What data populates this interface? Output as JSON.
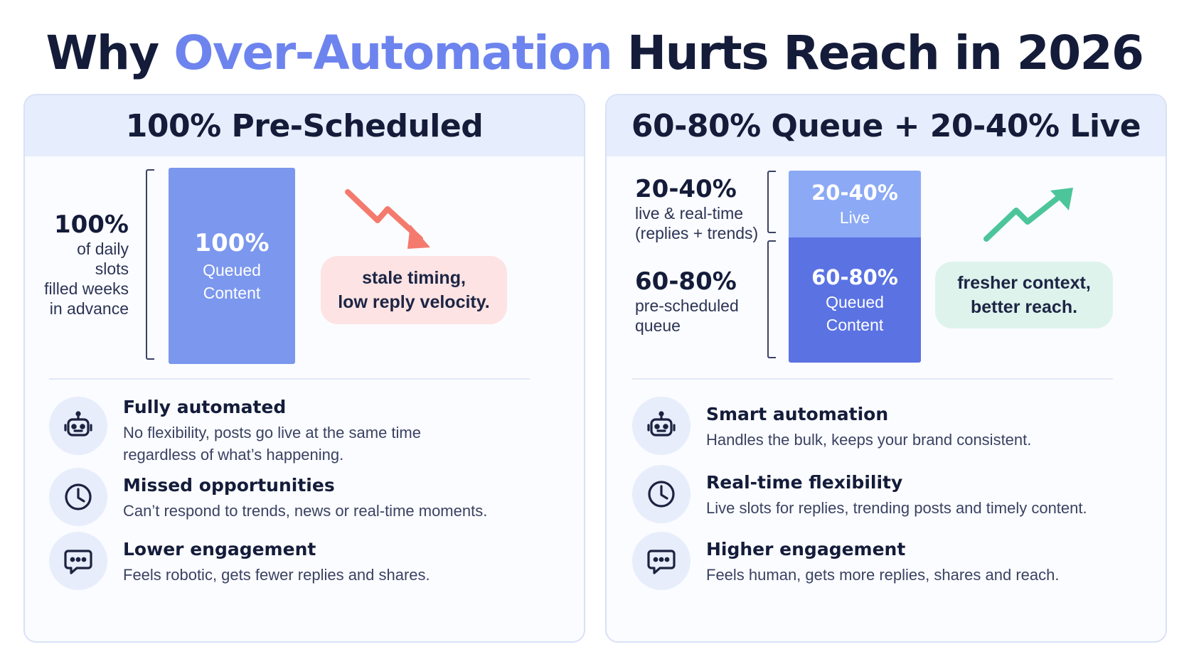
{
  "title": {
    "prefix": "Why",
    "accent": "Over-Automation",
    "suffix": "Hurts Reach in 2026"
  },
  "left_panel": {
    "heading": "100% Pre-Scheduled",
    "side_pct": "100%",
    "side_lines": [
      "of daily slots",
      "filled weeks",
      "in advance"
    ],
    "bar": {
      "pct": "100%",
      "label_lines": [
        "Queued",
        "Content"
      ],
      "color": "#7b97ee"
    },
    "trend": "down",
    "trend_color": "#f47a6e",
    "pill_lines": [
      "stale timing,",
      "low reply velocity."
    ],
    "features": [
      {
        "icon": "robot-icon",
        "title": "Fully automated",
        "desc_lines": [
          "No flexibility, posts go live at the same time",
          "regardless of what’s happening."
        ]
      },
      {
        "icon": "clock-icon",
        "title": "Missed opportunities",
        "desc_lines": [
          "Can’t respond to trends, news or real-time moments."
        ]
      },
      {
        "icon": "chat-icon",
        "title": "Lower engagement",
        "desc_lines": [
          "Feels robotic, gets fewer replies and shares."
        ]
      }
    ]
  },
  "right_panel": {
    "heading": "60-80% Queue + 20-40% Live",
    "live": {
      "side_pct": "20-40%",
      "side_lines": [
        "live & real-time",
        "(replies + trends)"
      ],
      "bar_pct": "20-40%",
      "bar_label": "Live",
      "color": "#8ba9f5"
    },
    "queue": {
      "side_pct": "60-80%",
      "side_lines": [
        "pre-scheduled",
        "queue"
      ],
      "bar_pct": "60-80%",
      "bar_label_lines": [
        "Queued",
        "Content"
      ],
      "color": "#5a72e2"
    },
    "trend": "up",
    "trend_color": "#4cc59b",
    "pill_lines": [
      "fresher context,",
      "better reach."
    ],
    "features": [
      {
        "icon": "robot-icon",
        "title": "Smart automation",
        "desc_lines": [
          "Handles the bulk, keeps your brand consistent."
        ]
      },
      {
        "icon": "clock-icon",
        "title": "Real-time flexibility",
        "desc_lines": [
          "Live slots for replies, trending posts and timely content."
        ]
      },
      {
        "icon": "chat-icon",
        "title": "Higher engagement",
        "desc_lines": [
          "Feels human, gets more replies, shares and reach."
        ]
      }
    ]
  }
}
